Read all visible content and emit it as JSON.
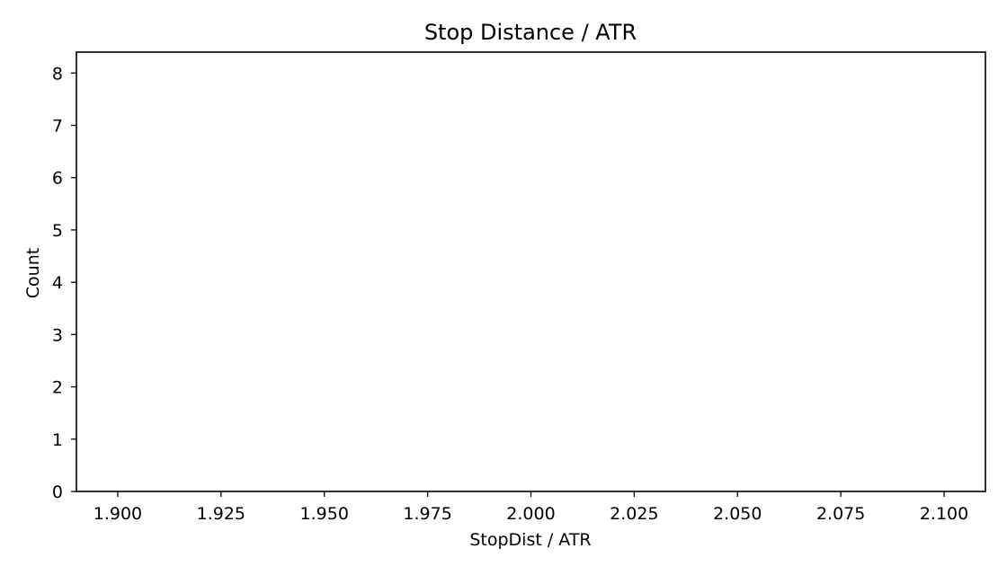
{
  "chart_data": {
    "type": "bar",
    "title": "Stop Distance / ATR",
    "xlabel": "StopDist / ATR",
    "ylabel": "Count",
    "xlim": [
      1.89,
      2.11
    ],
    "ylim": [
      0,
      8.4
    ],
    "xticks": [
      1.9,
      1.925,
      1.95,
      1.975,
      2.0,
      2.025,
      2.05,
      2.075,
      2.1
    ],
    "xtick_labels": [
      "1.900",
      "1.925",
      "1.950",
      "1.975",
      "2.000",
      "2.025",
      "2.050",
      "2.075",
      "2.100"
    ],
    "yticks": [
      0,
      1,
      2,
      3,
      4,
      5,
      6,
      7,
      8
    ],
    "ytick_labels": [
      "0",
      "1",
      "2",
      "3",
      "4",
      "5",
      "6",
      "7",
      "8"
    ],
    "bins": [],
    "values": [],
    "grid": false,
    "colors": {
      "axis": "#000000",
      "background": "#ffffff"
    }
  }
}
